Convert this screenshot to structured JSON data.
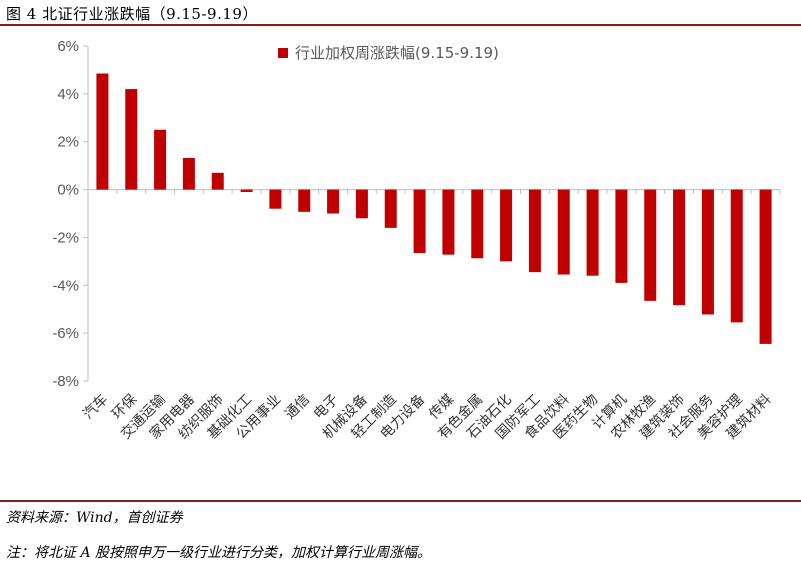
{
  "header": {
    "figure_title": "图 4  北证行业涨跌幅（9.15-9.19）"
  },
  "footer": {
    "source": "资料来源：Wind，首创证券",
    "note": "注：将北证 A 股按照申万一级行业进行分类，加权计算行业周涨幅。"
  },
  "colors": {
    "bar": "#c00000",
    "rule": "#8b1a1a",
    "axis": "#bfbfbf"
  },
  "chart_data": {
    "type": "bar",
    "categories": [
      "汽车",
      "环保",
      "交通运输",
      "家用电器",
      "纺织服饰",
      "基础化工",
      "公用事业",
      "通信",
      "电子",
      "机械设备",
      "轻工制造",
      "电力设备",
      "传媒",
      "有色金属",
      "石油石化",
      "国防军工",
      "食品饮料",
      "医药生物",
      "计算机",
      "农林牧渔",
      "建筑装饰",
      "社会服务",
      "美容护理",
      "建筑材料"
    ],
    "series": [
      {
        "name": "行业加权周涨跌幅(9.15-9.19)",
        "values": [
          4.85,
          4.2,
          2.5,
          1.32,
          0.7,
          -0.1,
          -0.8,
          -0.93,
          -1.0,
          -1.2,
          -1.6,
          -2.65,
          -2.72,
          -2.87,
          -3.0,
          -3.45,
          -3.55,
          -3.6,
          -3.9,
          -4.65,
          -4.83,
          -5.22,
          -5.55,
          -6.45
        ]
      }
    ],
    "ylim": [
      -8,
      6
    ],
    "yticks": [
      6,
      4,
      2,
      0,
      -2,
      -4,
      -6,
      -8
    ],
    "ytick_labels": [
      "6%",
      "4%",
      "2%",
      "0%",
      "-2%",
      "-4%",
      "-6%",
      "-8%"
    ],
    "legend_position": "top-center",
    "grid": false
  }
}
